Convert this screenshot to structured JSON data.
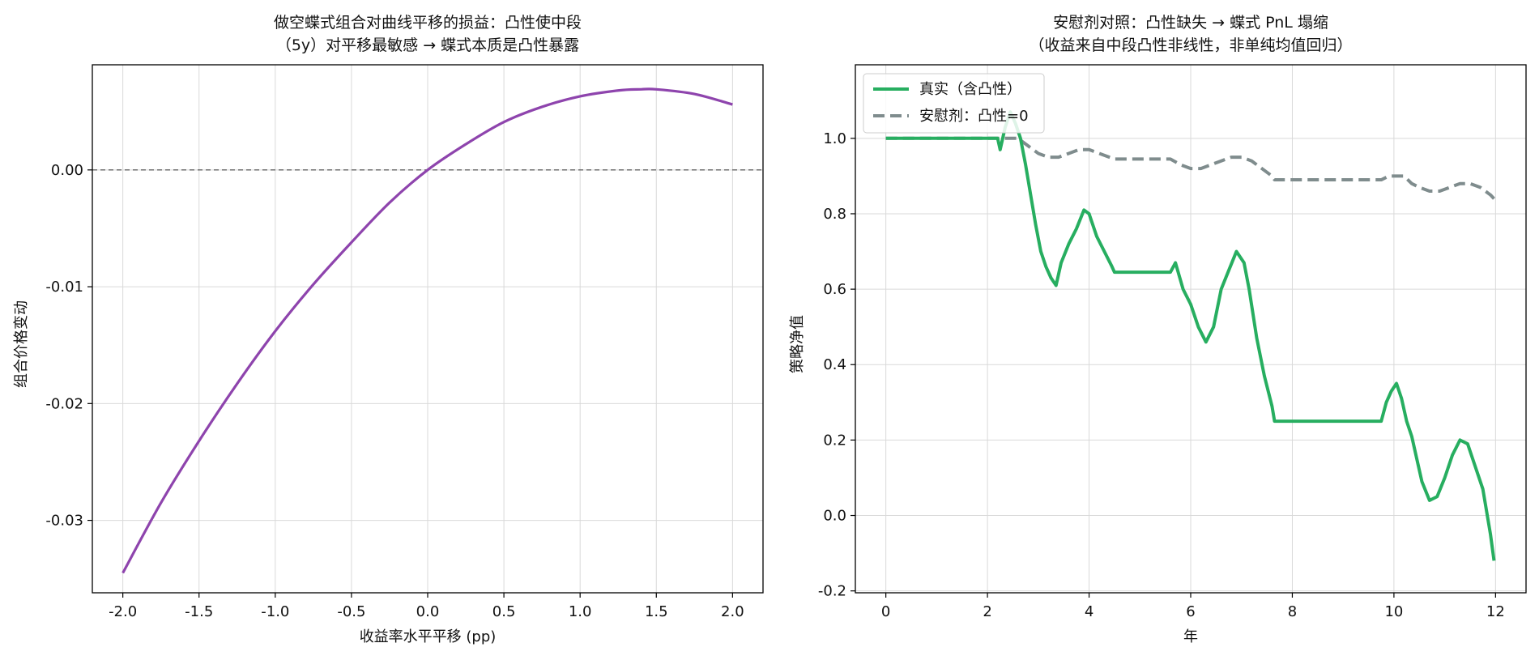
{
  "colors": {
    "left_curve": "#8e44ad",
    "real_series": "#27ae60",
    "placebo_series": "#7f8c8d",
    "zero_line": "#666666",
    "grid": "#d9d9d9"
  },
  "chart_data": [
    {
      "type": "line",
      "title": [
        "做空蝶式组合对曲线平移的损益：凸性使中段",
        "（5y）对平移最敏感 → 蝶式本质是凸性暴露"
      ],
      "xlabel": "收益率水平平移 (pp)",
      "ylabel": "组合价格变动",
      "xlim": [
        -2.2,
        2.2
      ],
      "ylim": [
        -0.0362,
        0.009
      ],
      "xticks": [
        -2.0,
        -1.5,
        -1.0,
        -0.5,
        0.0,
        0.5,
        1.0,
        1.5,
        2.0
      ],
      "xtick_labels": [
        "-2.0",
        "-1.5",
        "-1.0",
        "-0.5",
        "0.0",
        "0.5",
        "1.0",
        "1.5",
        "2.0"
      ],
      "yticks": [
        -0.03,
        -0.02,
        -0.01,
        0.0
      ],
      "ytick_labels": [
        "-0.03",
        "-0.02",
        "-0.01",
        "0.00"
      ],
      "grid": true,
      "reference_line_y": 0.0,
      "series": [
        {
          "x": [
            -2.0,
            -1.75,
            -1.5,
            -1.25,
            -1.0,
            -0.75,
            -0.5,
            -0.25,
            0.0,
            0.25,
            0.5,
            0.75,
            1.0,
            1.25,
            1.4,
            1.5,
            1.75,
            2.0
          ],
          "values": [
            -0.0345,
            -0.0285,
            -0.0232,
            -0.0183,
            -0.0138,
            -0.0098,
            -0.0062,
            -0.0028,
            0.0,
            0.0022,
            0.0041,
            0.0054,
            0.0063,
            0.0068,
            0.0069,
            0.0069,
            0.0065,
            0.0056
          ]
        }
      ]
    },
    {
      "type": "line",
      "title": [
        "安慰剂对照：凸性缺失 → 蝶式 PnL 塌缩",
        "（收益来自中段凸性非线性，非单纯均值回归）"
      ],
      "xlabel": "年",
      "ylabel": "策略净值",
      "xlim": [
        -0.6,
        12.6
      ],
      "ylim": [
        -0.205,
        1.195
      ],
      "xticks": [
        0,
        2,
        4,
        6,
        8,
        10,
        12
      ],
      "xtick_labels": [
        "0",
        "2",
        "4",
        "6",
        "8",
        "10",
        "12"
      ],
      "yticks": [
        -0.2,
        0.0,
        0.2,
        0.4,
        0.6,
        0.8,
        1.0
      ],
      "ytick_labels": [
        "-0.2",
        "0.0",
        "0.2",
        "0.4",
        "0.6",
        "0.8",
        "1.0"
      ],
      "grid": true,
      "legend": "top-left",
      "series": [
        {
          "name": "真实（含凸性）",
          "style": "solid",
          "x": [
            0.0,
            2.2,
            2.25,
            2.35,
            2.45,
            2.55,
            2.65,
            2.75,
            2.85,
            2.95,
            3.05,
            3.15,
            3.25,
            3.35,
            3.45,
            3.6,
            3.75,
            3.9,
            4.0,
            4.15,
            4.3,
            4.45,
            4.5,
            5.6,
            5.7,
            5.85,
            6.0,
            6.15,
            6.3,
            6.45,
            6.6,
            6.75,
            6.9,
            7.05,
            7.15,
            7.3,
            7.45,
            7.6,
            7.65,
            9.75,
            9.85,
            9.95,
            10.05,
            10.15,
            10.25,
            10.35,
            10.45,
            10.55,
            10.7,
            10.85,
            11.0,
            11.15,
            11.3,
            11.45,
            11.6,
            11.75,
            11.9,
            11.97
          ],
          "values": [
            1.0,
            1.0,
            0.97,
            1.03,
            1.07,
            1.04,
            1.0,
            0.93,
            0.85,
            0.77,
            0.7,
            0.66,
            0.63,
            0.61,
            0.67,
            0.72,
            0.76,
            0.81,
            0.8,
            0.74,
            0.7,
            0.66,
            0.645,
            0.645,
            0.67,
            0.6,
            0.56,
            0.5,
            0.46,
            0.5,
            0.6,
            0.65,
            0.7,
            0.67,
            0.6,
            0.47,
            0.37,
            0.29,
            0.25,
            0.25,
            0.3,
            0.33,
            0.35,
            0.31,
            0.25,
            0.21,
            0.15,
            0.09,
            0.04,
            0.05,
            0.1,
            0.16,
            0.2,
            0.19,
            0.13,
            0.07,
            -0.05,
            -0.12
          ]
        },
        {
          "name": "安慰剂：凸性=0",
          "style": "dashed",
          "x": [
            0.0,
            2.2,
            2.4,
            2.6,
            2.8,
            3.0,
            3.2,
            3.4,
            3.6,
            3.8,
            4.0,
            4.2,
            4.4,
            4.5,
            5.6,
            5.8,
            6.0,
            6.2,
            6.4,
            6.6,
            6.8,
            7.0,
            7.2,
            7.4,
            7.6,
            7.65,
            9.75,
            9.9,
            10.05,
            10.2,
            10.35,
            10.5,
            10.7,
            10.9,
            11.1,
            11.3,
            11.5,
            11.7,
            11.9,
            11.97
          ],
          "values": [
            1.0,
            1.0,
            1.0,
            1.0,
            0.98,
            0.96,
            0.95,
            0.95,
            0.96,
            0.97,
            0.97,
            0.96,
            0.95,
            0.945,
            0.945,
            0.93,
            0.92,
            0.92,
            0.93,
            0.94,
            0.95,
            0.95,
            0.94,
            0.92,
            0.9,
            0.89,
            0.89,
            0.9,
            0.9,
            0.9,
            0.88,
            0.87,
            0.86,
            0.86,
            0.87,
            0.88,
            0.88,
            0.87,
            0.85,
            0.84
          ]
        }
      ]
    }
  ]
}
